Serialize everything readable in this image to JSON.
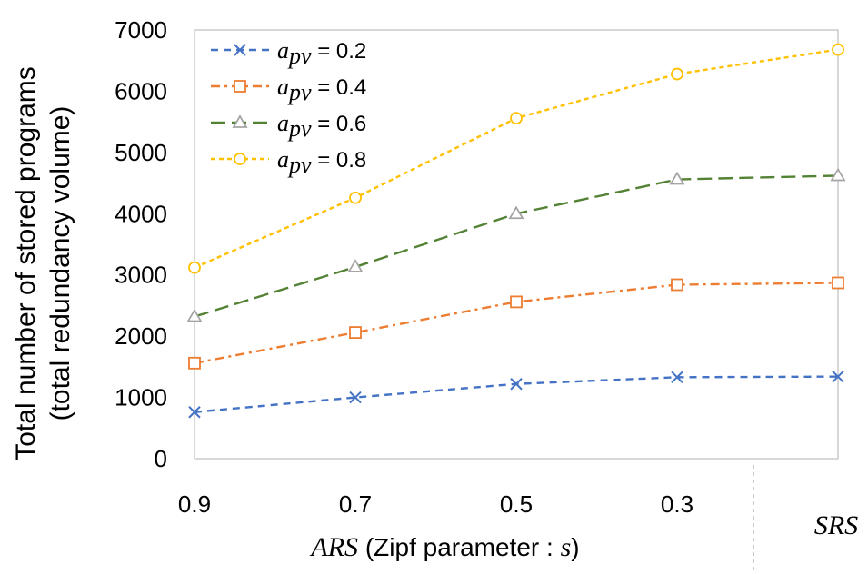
{
  "chart_data": {
    "type": "line",
    "categories": [
      "0.9",
      "0.7",
      "0.5",
      "0.3",
      "SRS"
    ],
    "ylim": [
      0,
      7000
    ],
    "yticks": [
      0,
      1000,
      2000,
      3000,
      4000,
      5000,
      6000,
      7000
    ],
    "ylabel_line1": "Total number of stored programs",
    "ylabel_line2": "(total redundancy volume)",
    "xlabel_prefix": "ARS",
    "xlabel_main": " (Zipf parameter : ",
    "xlabel_var": "s",
    "xlabel_close": ")",
    "srs_label": "SRS",
    "legend_symbol_main": "a",
    "legend_symbol_sub": "pv",
    "series": [
      {
        "name": "0.2",
        "legend_value": " = 0.2",
        "color": "#4472C4",
        "marker": "x",
        "dash": "8,6",
        "values": [
          760,
          1000,
          1220,
          1330,
          1340
        ]
      },
      {
        "name": "0.4",
        "legend_value": " = 0.4",
        "color": "#ED7D31",
        "marker": "square",
        "dash": "10,5,3,5",
        "values": [
          1560,
          2060,
          2560,
          2840,
          2870
        ]
      },
      {
        "name": "0.6",
        "legend_value": " = 0.6",
        "color": "#548235",
        "marker": "triangle",
        "dash": "16,7",
        "values": [
          2320,
          3130,
          4000,
          4560,
          4620
        ]
      },
      {
        "name": "0.8",
        "legend_value": " = 0.8",
        "color": "#FFC000",
        "marker": "circle",
        "dash": "5,4",
        "values": [
          3120,
          4260,
          5560,
          6280,
          6680
        ]
      }
    ]
  }
}
